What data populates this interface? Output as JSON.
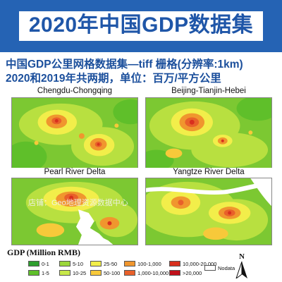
{
  "header": {
    "title": "2020年中国GDP数据集",
    "subtitle_line1": "中国GDP公里网格数据集—tiff 栅格(分辨率:1km)",
    "subtitle_line2": "2020和2019年共两期，单位：百万/平方公里"
  },
  "colors": {
    "banner": "#2563b4",
    "title_text": "#1f56a8",
    "subtitle_text": "#1b4f9c"
  },
  "panels": [
    {
      "label": "Chengdu-Chongqing"
    },
    {
      "label": "Beijing-Tianjin-Hebei"
    },
    {
      "label": "Pearl River Delta"
    },
    {
      "label": "Yangtze River Delta"
    }
  ],
  "watermark": "店铺：Geo地理资源数据中心",
  "legend": {
    "title": "GDP (Million RMB)",
    "items": [
      {
        "label": "0-1",
        "color": "#2e9e2e"
      },
      {
        "label": "1-5",
        "color": "#5fbf2a"
      },
      {
        "label": "5-10",
        "color": "#9bd63a"
      },
      {
        "label": "10-25",
        "color": "#c8e84a"
      },
      {
        "label": "25-50",
        "color": "#f2ee4a"
      },
      {
        "label": "50-100",
        "color": "#f7c93a"
      },
      {
        "label": "100-1,000",
        "color": "#f0962e"
      },
      {
        "label": "1,000-10,000",
        "color": "#e8602a"
      },
      {
        "label": "10,000-20,000",
        "color": "#d8301e"
      },
      {
        "label": ">20,000",
        "color": "#c0101a"
      },
      {
        "label": "Nodata",
        "color": "#ffffff"
      }
    ]
  },
  "north_arrow": {
    "letter": "N",
    "icon": "north-arrow-icon"
  }
}
